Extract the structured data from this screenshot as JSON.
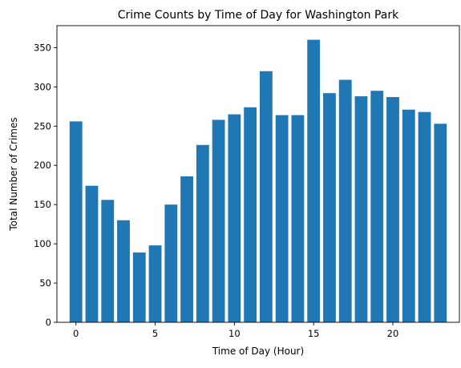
{
  "chart_data": {
    "type": "bar",
    "title": "Crime Counts by Time of Day for Washington Park",
    "xlabel": "Time of Day (Hour)",
    "ylabel": "Total Number of Crimes",
    "x": [
      0,
      1,
      2,
      3,
      4,
      5,
      6,
      7,
      8,
      9,
      10,
      11,
      12,
      13,
      14,
      15,
      16,
      17,
      18,
      19,
      20,
      21,
      22,
      23
    ],
    "values": [
      256,
      174,
      156,
      130,
      89,
      98,
      150,
      186,
      226,
      258,
      265,
      274,
      320,
      264,
      264,
      360,
      292,
      309,
      288,
      295,
      287,
      271,
      268,
      253
    ],
    "xlim": [
      -1.2,
      24.2
    ],
    "ylim": [
      0,
      378
    ],
    "xticks": [
      0,
      5,
      10,
      15,
      20
    ],
    "yticks": [
      0,
      50,
      100,
      150,
      200,
      250,
      300,
      350
    ],
    "bar_color": "#1f77b4",
    "grid": false,
    "legend": "none"
  }
}
